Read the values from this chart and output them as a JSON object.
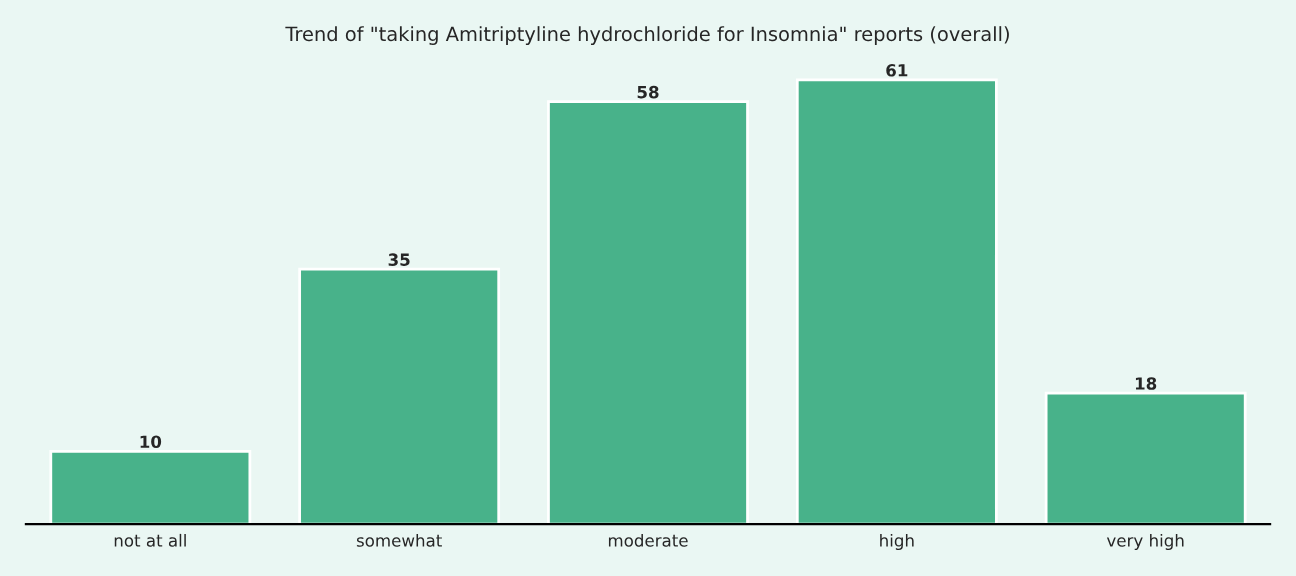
{
  "chart_data": {
    "type": "bar",
    "title": "Trend of \"taking Amitriptyline hydrochloride for Insomnia\" reports (overall)",
    "categories": [
      "not at all",
      "somewhat",
      "moderate",
      "high",
      "very high"
    ],
    "values": [
      10,
      35,
      58,
      61,
      18
    ],
    "color": "#48b28a",
    "data_labels": true,
    "grid": false,
    "legend": false,
    "tick_labels": "x"
  }
}
